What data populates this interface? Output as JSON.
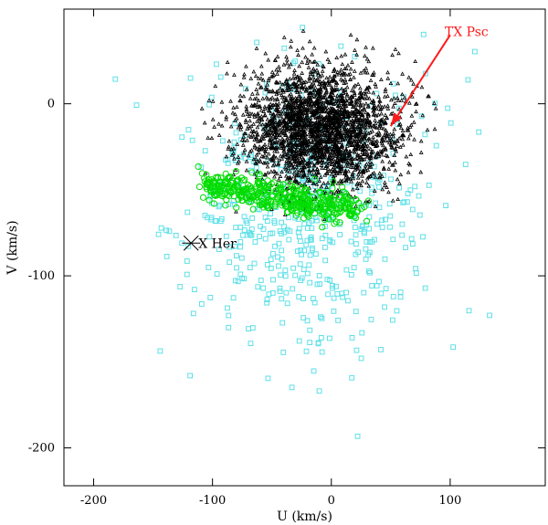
{
  "chart_data": {
    "type": "scatter",
    "xlabel": "U (km/s)",
    "ylabel": "V (km/s)",
    "xlim": [
      -225,
      180
    ],
    "ylim": [
      -222,
      55
    ],
    "xticks": [
      -200,
      -100,
      0,
      100
    ],
    "yticks": [
      -200,
      -100,
      0
    ],
    "grid": false,
    "colors": {
      "black_series": "#000000",
      "green_series": "#00dd00",
      "cyan_series": "#5ee0e8",
      "tx_psc": "#ff1a1a",
      "x_her": "#000000"
    },
    "series": [
      {
        "marker": "triangle",
        "color": "#000000",
        "distribution": {
          "cx": -10,
          "cy": -15,
          "sx": 33,
          "sy": 18,
          "count": 2600,
          "xmin": -120,
          "xmax": 95,
          "ymin": -68,
          "ymax": 52
        }
      },
      {
        "marker": "circle",
        "color": "#00dd00",
        "band": {
          "x_start": -105,
          "x_end": 25,
          "y_start": -47,
          "y_end": -62,
          "spread_y": 4.5,
          "count": 420
        }
      },
      {
        "marker": "square",
        "color": "#5ee0e8",
        "distribution": {
          "cx": -20,
          "cy": -60,
          "sx": 52,
          "sy": 42,
          "count": 560,
          "xmin": -200,
          "xmax": 140,
          "ymin": -215,
          "ymax": 45
        }
      }
    ],
    "annotations": [
      {
        "label": "TX Psc",
        "point": {
          "x": 50,
          "y": -13
        },
        "text_position": {
          "x": 100,
          "y": 43
        },
        "arrow_from": {
          "x": 100,
          "y": 40
        },
        "color": "#ff1a1a"
      },
      {
        "label": "X Her",
        "point": {
          "x": -118,
          "y": -81
        },
        "text_position": {
          "x": -113,
          "y": -81
        },
        "color": "#000000"
      }
    ]
  }
}
